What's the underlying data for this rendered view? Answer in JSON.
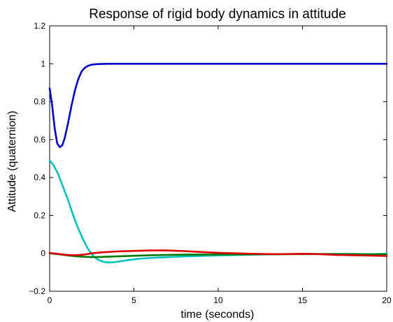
{
  "chart_data": {
    "type": "line",
    "title": "Response of rigid body dynamics in attitude",
    "xlabel": "time (seconds)",
    "ylabel": "Attitude (quaternion)",
    "xlim": [
      0,
      20
    ],
    "ylim": [
      -0.2,
      1.2
    ],
    "grid": false,
    "legend": "none",
    "x_ticks": [
      0,
      5,
      10,
      15,
      20
    ],
    "x_tick_labels": [
      "0",
      "5",
      "10",
      "15",
      "20"
    ],
    "y_ticks": [
      -0.2,
      0,
      0.2,
      0.4,
      0.6,
      0.8,
      1,
      1.2
    ],
    "y_tick_labels": [
      "−0.2",
      "0",
      "0.2",
      "0.4",
      "0.6",
      "0.8",
      "1",
      "1.2"
    ],
    "series": [
      {
        "color": "#0000cc",
        "x": [
          0,
          0.15,
          0.3,
          0.45,
          0.6,
          0.75,
          0.9,
          1.1,
          1.3,
          1.5,
          1.7,
          1.9,
          2.1,
          2.3,
          2.5,
          2.8,
          3.1,
          3.5,
          4,
          5,
          6,
          8,
          10,
          12,
          14,
          16,
          18,
          20
        ],
        "y": [
          0.87,
          0.78,
          0.66,
          0.58,
          0.56,
          0.57,
          0.61,
          0.69,
          0.78,
          0.86,
          0.92,
          0.96,
          0.98,
          0.99,
          0.995,
          0.998,
          0.999,
          1,
          1,
          1,
          1,
          1,
          1,
          1,
          1,
          1,
          1,
          1
        ]
      },
      {
        "color": "#00c0c0",
        "x": [
          0,
          0.2,
          0.5,
          0.8,
          1.1,
          1.4,
          1.7,
          2,
          2.3,
          2.6,
          2.9,
          3.2,
          3.5,
          3.8,
          4.2,
          4.7,
          5.5,
          6.5,
          8,
          10,
          12,
          14,
          16,
          18,
          19,
          20
        ],
        "y": [
          0.49,
          0.47,
          0.42,
          0.35,
          0.28,
          0.2,
          0.13,
          0.07,
          0.02,
          -0.015,
          -0.035,
          -0.045,
          -0.048,
          -0.047,
          -0.042,
          -0.035,
          -0.027,
          -0.022,
          -0.016,
          -0.011,
          -0.007,
          -0.004,
          -0.003,
          -0.003,
          -0.005,
          -0.002
        ]
      },
      {
        "color": "#007a00",
        "x": [
          0,
          0.5,
          1,
          1.5,
          2,
          2.5,
          3,
          4,
          5,
          6,
          7,
          8,
          10,
          12,
          14,
          16,
          18,
          20
        ],
        "y": [
          0,
          -0.004,
          -0.01,
          -0.015,
          -0.018,
          -0.02,
          -0.019,
          -0.016,
          -0.013,
          -0.01,
          -0.008,
          -0.007,
          -0.006,
          -0.005,
          -0.004,
          -0.004,
          -0.005,
          -0.005
        ]
      },
      {
        "color": "#dd0000",
        "x": [
          0,
          0.5,
          1,
          1.5,
          2,
          2.5,
          3,
          4,
          5,
          6,
          6.8,
          8,
          9,
          10,
          11,
          12,
          13,
          14,
          15,
          16,
          17,
          18,
          19,
          20
        ],
        "y": [
          0.002,
          -0.003,
          -0.008,
          -0.01,
          -0.007,
          0,
          0.005,
          0.01,
          0.013,
          0.015,
          0.016,
          0.012,
          0.007,
          0.003,
          0,
          -0.002,
          -0.004,
          -0.004,
          -0.002,
          -0.004,
          -0.008,
          -0.01,
          -0.012,
          -0.014
        ]
      }
    ]
  }
}
